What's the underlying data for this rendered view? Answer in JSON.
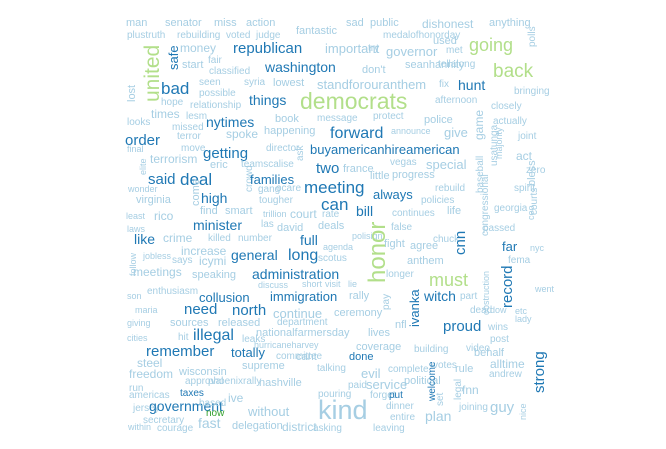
{
  "palette": {
    "light": "#a6cee3",
    "mid": "#1f78b4",
    "green_light": "#b2df8a",
    "green": "#33a02c"
  },
  "words": [
    {
      "text": "man",
      "c": "light"
    },
    {
      "text": "senator",
      "c": "light"
    },
    {
      "text": "miss",
      "c": "light"
    },
    {
      "text": "action",
      "c": "light"
    },
    {
      "text": "sad",
      "c": "light"
    },
    {
      "text": "public",
      "c": "light"
    },
    {
      "text": "dishonest",
      "c": "light"
    },
    {
      "text": "anything",
      "c": "light"
    },
    {
      "text": "plustruth",
      "c": "light"
    },
    {
      "text": "rebuilding",
      "c": "light"
    },
    {
      "text": "voted",
      "c": "light"
    },
    {
      "text": "judge",
      "c": "light"
    },
    {
      "text": "fantastic",
      "c": "light"
    },
    {
      "text": "medalofhonorday",
      "c": "light"
    },
    {
      "text": "polls",
      "c": "light"
    },
    {
      "text": "money",
      "c": "light"
    },
    {
      "text": "republican",
      "c": "mid"
    },
    {
      "text": "important",
      "c": "light"
    },
    {
      "text": "try",
      "c": "light"
    },
    {
      "text": "governor",
      "c": "light"
    },
    {
      "text": "met",
      "c": "light"
    },
    {
      "text": "used",
      "c": "light"
    },
    {
      "text": "going",
      "c": "green_light"
    },
    {
      "text": "united",
      "c": "green_light"
    },
    {
      "text": "safe",
      "c": "mid"
    },
    {
      "text": "start",
      "c": "light"
    },
    {
      "text": "fair",
      "c": "light"
    },
    {
      "text": "classified",
      "c": "light"
    },
    {
      "text": "washington",
      "c": "mid"
    },
    {
      "text": "don't",
      "c": "light"
    },
    {
      "text": "seanhannity",
      "c": "light"
    },
    {
      "text": "tellalong",
      "c": "light"
    },
    {
      "text": "back",
      "c": "green_light"
    },
    {
      "text": "bad",
      "c": "mid"
    },
    {
      "text": "seen",
      "c": "light"
    },
    {
      "text": "possible",
      "c": "light"
    },
    {
      "text": "syria",
      "c": "light"
    },
    {
      "text": "lowest",
      "c": "light"
    },
    {
      "text": "standforouranthem",
      "c": "light"
    },
    {
      "text": "fix",
      "c": "light"
    },
    {
      "text": "hunt",
      "c": "mid"
    },
    {
      "text": "bringing",
      "c": "light"
    },
    {
      "text": "lost",
      "c": "light"
    },
    {
      "text": "hope",
      "c": "light"
    },
    {
      "text": "relationship",
      "c": "light"
    },
    {
      "text": "things",
      "c": "mid"
    },
    {
      "text": "democrats",
      "c": "green_light"
    },
    {
      "text": "afternoon",
      "c": "light"
    },
    {
      "text": "closely",
      "c": "light"
    },
    {
      "text": "times",
      "c": "light"
    },
    {
      "text": "lesm",
      "c": "light"
    },
    {
      "text": "nytimes",
      "c": "mid"
    },
    {
      "text": "book",
      "c": "light"
    },
    {
      "text": "message",
      "c": "light"
    },
    {
      "text": "protect",
      "c": "light"
    },
    {
      "text": "police",
      "c": "light"
    },
    {
      "text": "actually",
      "c": "light"
    },
    {
      "text": "looks",
      "c": "light"
    },
    {
      "text": "missed",
      "c": "light"
    },
    {
      "text": "spoke",
      "c": "light"
    },
    {
      "text": "happening",
      "c": "light"
    },
    {
      "text": "forward",
      "c": "mid"
    },
    {
      "text": "announce",
      "c": "light"
    },
    {
      "text": "give",
      "c": "light"
    },
    {
      "text": "game",
      "c": "light"
    },
    {
      "text": "joint",
      "c": "light"
    },
    {
      "text": "order",
      "c": "mid"
    },
    {
      "text": "terror",
      "c": "light"
    },
    {
      "text": "move",
      "c": "light"
    },
    {
      "text": "director",
      "c": "light"
    },
    {
      "text": "buyamericanhireamerican",
      "c": "mid"
    },
    {
      "text": "act",
      "c": "light"
    },
    {
      "text": "final",
      "c": "light"
    },
    {
      "text": "terrorism",
      "c": "light"
    },
    {
      "text": "getting",
      "c": "mid"
    },
    {
      "text": "ask",
      "c": "light"
    },
    {
      "text": "france",
      "c": "light"
    },
    {
      "text": "vegas",
      "c": "light"
    },
    {
      "text": "special",
      "c": "light"
    },
    {
      "text": "baseball",
      "c": "light"
    },
    {
      "text": "usatunga",
      "c": "light"
    },
    {
      "text": "majority",
      "c": "light"
    },
    {
      "text": "zero",
      "c": "light"
    },
    {
      "text": "elite",
      "c": "light"
    },
    {
      "text": "eric",
      "c": "light"
    },
    {
      "text": "teamscalise",
      "c": "light"
    },
    {
      "text": "two",
      "c": "mid"
    },
    {
      "text": "little",
      "c": "light"
    },
    {
      "text": "progress",
      "c": "light"
    },
    {
      "text": "bless",
      "c": "light"
    },
    {
      "text": "said",
      "c": "mid"
    },
    {
      "text": "deal",
      "c": "mid"
    },
    {
      "text": "crowd",
      "c": "light"
    },
    {
      "text": "families",
      "c": "mid"
    },
    {
      "text": "meeting",
      "c": "mid"
    },
    {
      "text": "spirit",
      "c": "light"
    },
    {
      "text": "wonder",
      "c": "light"
    },
    {
      "text": "come",
      "c": "light"
    },
    {
      "text": "ocare",
      "c": "light"
    },
    {
      "text": "gang",
      "c": "light"
    },
    {
      "text": "can",
      "c": "mid"
    },
    {
      "text": "always",
      "c": "mid"
    },
    {
      "text": "rebuild",
      "c": "light"
    },
    {
      "text": "congressional",
      "c": "light"
    },
    {
      "text": "courts",
      "c": "light"
    },
    {
      "text": "virginia",
      "c": "light"
    },
    {
      "text": "high",
      "c": "mid"
    },
    {
      "text": "tougher",
      "c": "light"
    },
    {
      "text": "bill",
      "c": "mid"
    },
    {
      "text": "policies",
      "c": "light"
    },
    {
      "text": "georgia",
      "c": "light"
    },
    {
      "text": "rico",
      "c": "light"
    },
    {
      "text": "find",
      "c": "light"
    },
    {
      "text": "smart",
      "c": "light"
    },
    {
      "text": "trillion",
      "c": "light"
    },
    {
      "text": "court",
      "c": "light"
    },
    {
      "text": "rate",
      "c": "light"
    },
    {
      "text": "continues",
      "c": "light"
    },
    {
      "text": "life",
      "c": "light"
    },
    {
      "text": "ceo",
      "c": "light"
    },
    {
      "text": "least",
      "c": "light"
    },
    {
      "text": "minister",
      "c": "mid"
    },
    {
      "text": "las",
      "c": "light"
    },
    {
      "text": "david",
      "c": "light"
    },
    {
      "text": "deals",
      "c": "light"
    },
    {
      "text": "false",
      "c": "light"
    },
    {
      "text": "passed",
      "c": "light"
    },
    {
      "text": "laws",
      "c": "light"
    },
    {
      "text": "like",
      "c": "mid"
    },
    {
      "text": "crime",
      "c": "light"
    },
    {
      "text": "killed",
      "c": "light"
    },
    {
      "text": "number",
      "c": "light"
    },
    {
      "text": "full",
      "c": "mid"
    },
    {
      "text": "polisign",
      "c": "light"
    },
    {
      "text": "chuck",
      "c": "light"
    },
    {
      "text": "cnn",
      "c": "mid"
    },
    {
      "text": "increase",
      "c": "light"
    },
    {
      "text": "agenda",
      "c": "light"
    },
    {
      "text": "fight",
      "c": "light"
    },
    {
      "text": "agree",
      "c": "light"
    },
    {
      "text": "far",
      "c": "mid"
    },
    {
      "text": "nyc",
      "c": "light"
    },
    {
      "text": "jobless",
      "c": "light"
    },
    {
      "text": "icymi",
      "c": "light"
    },
    {
      "text": "general",
      "c": "mid"
    },
    {
      "text": "long",
      "c": "mid"
    },
    {
      "text": "scotus",
      "c": "light"
    },
    {
      "text": "anthem",
      "c": "light"
    },
    {
      "text": "fema",
      "c": "light"
    },
    {
      "text": "follow",
      "c": "light"
    },
    {
      "text": "meetings",
      "c": "light"
    },
    {
      "text": "says",
      "c": "light"
    },
    {
      "text": "honor",
      "c": "green_light"
    },
    {
      "text": "must",
      "c": "green_light"
    },
    {
      "text": "speaking",
      "c": "light"
    },
    {
      "text": "administration",
      "c": "mid"
    },
    {
      "text": "longer",
      "c": "light"
    },
    {
      "text": "discuss",
      "c": "light"
    },
    {
      "text": "short",
      "c": "light"
    },
    {
      "text": "visit",
      "c": "light"
    },
    {
      "text": "lie",
      "c": "light"
    },
    {
      "text": "record",
      "c": "mid"
    },
    {
      "text": "went",
      "c": "light"
    },
    {
      "text": "son",
      "c": "light"
    },
    {
      "text": "enthusiasm",
      "c": "light"
    },
    {
      "text": "collusion",
      "c": "mid"
    },
    {
      "text": "immigration",
      "c": "mid"
    },
    {
      "text": "rally",
      "c": "light"
    },
    {
      "text": "pay",
      "c": "light"
    },
    {
      "text": "witch",
      "c": "mid"
    },
    {
      "text": "part",
      "c": "light"
    },
    {
      "text": "obstruction",
      "c": "light"
    },
    {
      "text": "maria",
      "c": "light"
    },
    {
      "text": "need",
      "c": "mid"
    },
    {
      "text": "north",
      "c": "mid"
    },
    {
      "text": "continue",
      "c": "light"
    },
    {
      "text": "ceremony",
      "c": "light"
    },
    {
      "text": "ivanka",
      "c": "mid"
    },
    {
      "text": "dead",
      "c": "light"
    },
    {
      "text": "dow",
      "c": "light"
    },
    {
      "text": "etc",
      "c": "light"
    },
    {
      "text": "lady",
      "c": "light"
    },
    {
      "text": "giving",
      "c": "light"
    },
    {
      "text": "sources",
      "c": "light"
    },
    {
      "text": "released",
      "c": "light"
    },
    {
      "text": "department",
      "c": "light"
    },
    {
      "text": "nfl",
      "c": "light"
    },
    {
      "text": "proud",
      "c": "mid"
    },
    {
      "text": "wins",
      "c": "light"
    },
    {
      "text": "cities",
      "c": "light"
    },
    {
      "text": "hit",
      "c": "light"
    },
    {
      "text": "illegal",
      "c": "mid"
    },
    {
      "text": "leaks",
      "c": "light"
    },
    {
      "text": "nationalfarmersday",
      "c": "light"
    },
    {
      "text": "lives",
      "c": "light"
    },
    {
      "text": "post",
      "c": "light"
    },
    {
      "text": "freedom",
      "c": "light"
    },
    {
      "text": "remember",
      "c": "mid"
    },
    {
      "text": "totally",
      "c": "mid"
    },
    {
      "text": "hurricaneharvey",
      "c": "light"
    },
    {
      "text": "coverage",
      "c": "light"
    },
    {
      "text": "building",
      "c": "light"
    },
    {
      "text": "video",
      "c": "light"
    },
    {
      "text": "behalf",
      "c": "light"
    },
    {
      "text": "steel",
      "c": "light"
    },
    {
      "text": "wisconsin",
      "c": "light"
    },
    {
      "text": "supreme",
      "c": "light"
    },
    {
      "text": "committee",
      "c": "light"
    },
    {
      "text": "cant",
      "c": "light"
    },
    {
      "text": "done",
      "c": "mid"
    },
    {
      "text": "votes",
      "c": "light"
    },
    {
      "text": "alltime",
      "c": "light"
    },
    {
      "text": "run",
      "c": "light"
    },
    {
      "text": "approval",
      "c": "light"
    },
    {
      "text": "phoenixrally",
      "c": "light"
    },
    {
      "text": "nashville",
      "c": "light"
    },
    {
      "text": "talking",
      "c": "light"
    },
    {
      "text": "evil",
      "c": "light"
    },
    {
      "text": "complete",
      "c": "light"
    },
    {
      "text": "rule",
      "c": "light"
    },
    {
      "text": "andrew",
      "c": "light"
    },
    {
      "text": "americas",
      "c": "light"
    },
    {
      "text": "taxes",
      "c": "mid"
    },
    {
      "text": "paid",
      "c": "light"
    },
    {
      "text": "service",
      "c": "light"
    },
    {
      "text": "political",
      "c": "light"
    },
    {
      "text": "welcome",
      "c": "mid"
    },
    {
      "text": "fnn",
      "c": "light"
    },
    {
      "text": "strong",
      "c": "mid"
    },
    {
      "text": "jersey",
      "c": "light"
    },
    {
      "text": "government",
      "c": "mid"
    },
    {
      "text": "based",
      "c": "light"
    },
    {
      "text": "ive",
      "c": "light"
    },
    {
      "text": "pouring",
      "c": "light"
    },
    {
      "text": "forget",
      "c": "light"
    },
    {
      "text": "put",
      "c": "mid"
    },
    {
      "text": "set",
      "c": "light"
    },
    {
      "text": "guy",
      "c": "light"
    },
    {
      "text": "within",
      "c": "light"
    },
    {
      "text": "secretary",
      "c": "light"
    },
    {
      "text": "now",
      "c": "green"
    },
    {
      "text": "without",
      "c": "light"
    },
    {
      "text": "kind",
      "c": "light"
    },
    {
      "text": "dinner",
      "c": "light"
    },
    {
      "text": "legal",
      "c": "light"
    },
    {
      "text": "joining",
      "c": "light"
    },
    {
      "text": "nice",
      "c": "light"
    },
    {
      "text": "courage",
      "c": "light"
    },
    {
      "text": "fast",
      "c": "light"
    },
    {
      "text": "delegation",
      "c": "light"
    },
    {
      "text": "district",
      "c": "light"
    },
    {
      "text": "asking",
      "c": "light"
    },
    {
      "text": "leaving",
      "c": "light"
    },
    {
      "text": "entire",
      "c": "light"
    },
    {
      "text": "plan",
      "c": "light"
    }
  ]
}
